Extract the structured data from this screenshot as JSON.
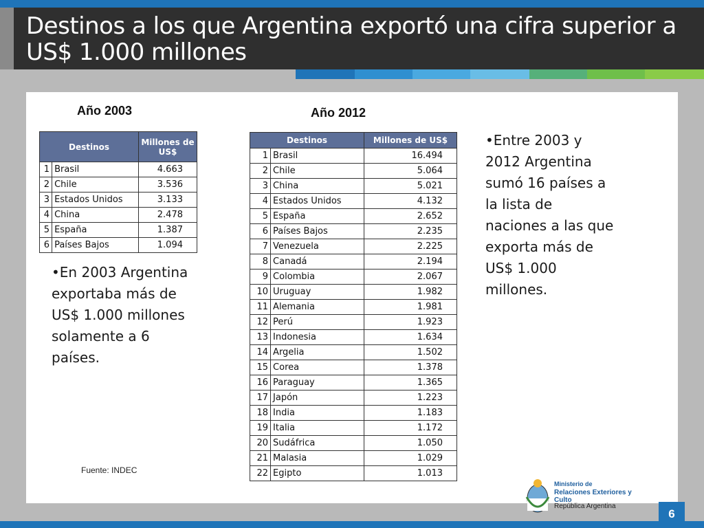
{
  "slide": {
    "title": "Destinos a los que Argentina exportó una cifra superior a US$ 1.000 millones",
    "page_number": "6",
    "source": "Fuente: INDEC"
  },
  "table2003": {
    "heading": "Año 2003",
    "col_dest": "Destinos",
    "col_val": "Millones de US$",
    "rows": [
      {
        "n": "1",
        "country": "Brasil",
        "value": "4.663"
      },
      {
        "n": "2",
        "country": "Chile",
        "value": "3.536"
      },
      {
        "n": "3",
        "country": "Estados Unidos",
        "value": "3.133"
      },
      {
        "n": "4",
        "country": "China",
        "value": "2.478"
      },
      {
        "n": "5",
        "country": "España",
        "value": "1.387"
      },
      {
        "n": "6",
        "country": "Países Bajos",
        "value": "1.094"
      }
    ]
  },
  "table2012": {
    "heading": "Año 2012",
    "col_dest": "Destinos",
    "col_val": "Millones de US$",
    "rows": [
      {
        "n": "1",
        "country": "Brasil",
        "value": "16.494"
      },
      {
        "n": "2",
        "country": "Chile",
        "value": "5.064"
      },
      {
        "n": "3",
        "country": "China",
        "value": "5.021"
      },
      {
        "n": "4",
        "country": "Estados Unidos",
        "value": "4.132"
      },
      {
        "n": "5",
        "country": "España",
        "value": "2.652"
      },
      {
        "n": "6",
        "country": "Países Bajos",
        "value": "2.235"
      },
      {
        "n": "7",
        "country": "Venezuela",
        "value": "2.225"
      },
      {
        "n": "8",
        "country": "Canadá",
        "value": "2.194"
      },
      {
        "n": "9",
        "country": "Colombia",
        "value": "2.067"
      },
      {
        "n": "10",
        "country": "Uruguay",
        "value": "1.982"
      },
      {
        "n": "11",
        "country": "Alemania",
        "value": "1.981"
      },
      {
        "n": "12",
        "country": "Perú",
        "value": "1.923"
      },
      {
        "n": "13",
        "country": "Indonesia",
        "value": "1.634"
      },
      {
        "n": "14",
        "country": "Argelia",
        "value": "1.502"
      },
      {
        "n": "15",
        "country": "Corea",
        "value": "1.378"
      },
      {
        "n": "16",
        "country": "Paraguay",
        "value": "1.365"
      },
      {
        "n": "17",
        "country": "Japón",
        "value": "1.223"
      },
      {
        "n": "18",
        "country": "India",
        "value": "1.183"
      },
      {
        "n": "19",
        "country": "Italia",
        "value": "1.172"
      },
      {
        "n": "20",
        "country": "Sudáfrica",
        "value": "1.050"
      },
      {
        "n": "21",
        "country": "Malasia",
        "value": "1.029"
      },
      {
        "n": "22",
        "country": "Egipto",
        "value": "1.013"
      }
    ]
  },
  "notes": {
    "left": "•En 2003 Argentina exportaba más de US$ 1.000 millones solamente a 6 países.",
    "right": "•Entre 2003 y 2012 Argentina sumó 16 países a la lista de naciones a las que exporta más de US$ 1.000 millones."
  },
  "logo": {
    "line1": "Ministerio de",
    "line2": "Relaciones Exteriores y Culto",
    "line3": "República Argentina"
  },
  "colors": {
    "title_bg": "#2f2f2f",
    "accent_blue": "#1f74b8",
    "table_header": "#5d6f98",
    "stripe_green": "#7dbf4f"
  }
}
